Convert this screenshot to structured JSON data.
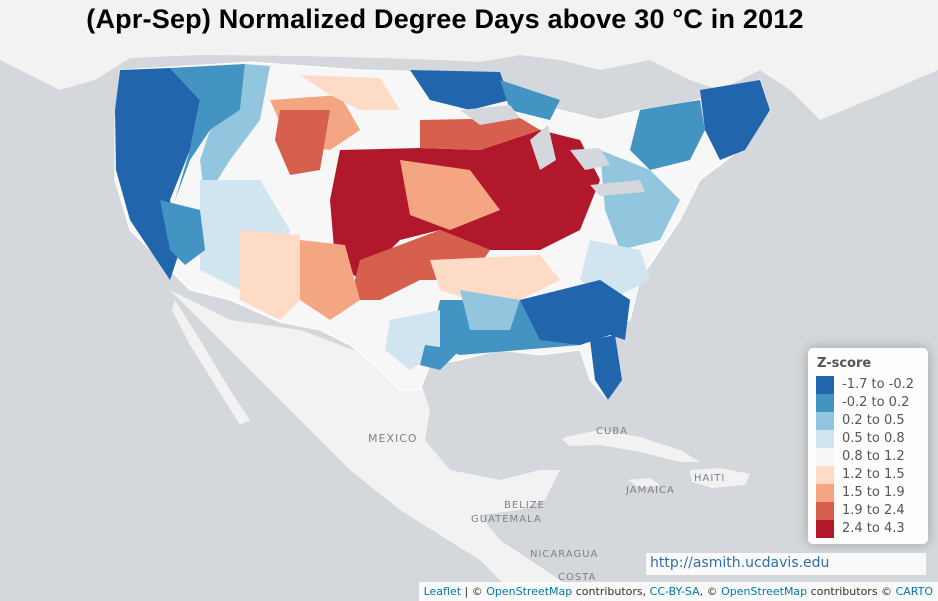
{
  "title": "(Apr-Sep) Normalized Degree Days above 30 °C in 2012",
  "legend": {
    "title": "Z-score",
    "items": [
      {
        "label": "-1.7 to -0.2",
        "color": "#2166ac"
      },
      {
        "label": "-0.2 to 0.2",
        "color": "#4393c3"
      },
      {
        "label": "0.2 to 0.5",
        "color": "#92c5de"
      },
      {
        "label": "0.5 to 0.8",
        "color": "#d1e5f0"
      },
      {
        "label": "0.8 to 1.2",
        "color": "#f7f7f7"
      },
      {
        "label": "1.2 to 1.5",
        "color": "#fddbc7"
      },
      {
        "label": "1.5 to 1.9",
        "color": "#f4a582"
      },
      {
        "label": "1.9 to 2.4",
        "color": "#d6604d"
      },
      {
        "label": "2.4 to 4.3",
        "color": "#b2182b"
      }
    ]
  },
  "map_labels": {
    "mexico": "MEXICO",
    "cuba": "CUBA",
    "jamaica": "JAMAICA",
    "haiti": "HAITI",
    "belize": "BELIZE",
    "guatemala": "GUATEMALA",
    "nicaragua": "NICARAGUA",
    "costa": "COSTA"
  },
  "url": "http://asmith.ucdavis.edu",
  "attribution": {
    "leaflet": "Leaflet",
    "sep1": " | © ",
    "osm1": "OpenStreetMap",
    "contributors1": " contributors, ",
    "ccbysa": "CC-BY-SA",
    "sep2": ", © ",
    "osm2": "OpenStreetMap",
    "contributors2": " contributors © ",
    "carto": "CARTO"
  }
}
